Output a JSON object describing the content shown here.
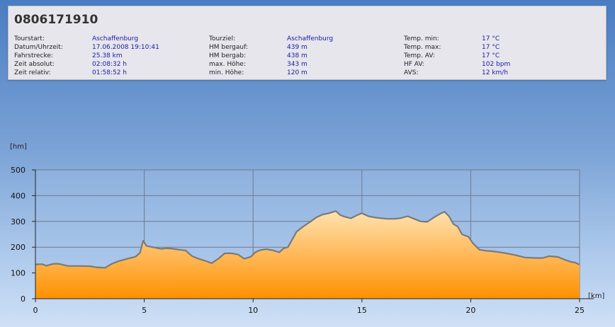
{
  "header": {
    "title": "0806171910"
  },
  "info_columns": [
    [
      {
        "label": "Tourstart:",
        "value": "Aschaffenburg"
      },
      {
        "label": "Datum/Uhrzeit:",
        "value": "17.06.2008 19:10:41"
      },
      {
        "label": "Fahrstrecke:",
        "value": "25.38 km"
      },
      {
        "label": "Zeit absolut:",
        "value": "02:08:32 h"
      },
      {
        "label": "Zeit relativ:",
        "value": "01:58:52 h"
      }
    ],
    [
      {
        "label": "Tourziel:",
        "value": "Aschaffenburg"
      },
      {
        "label": "HM bergauf:",
        "value": "439 m"
      },
      {
        "label": "HM bergab:",
        "value": "438 m"
      },
      {
        "label": "max. Höhe:",
        "value": "343 m"
      },
      {
        "label": "min. Höhe:",
        "value": "120 m"
      }
    ],
    [
      {
        "label": "Temp. min:",
        "value": "17 °C"
      },
      {
        "label": "Temp. max:",
        "value": "17 °C"
      },
      {
        "label": "Temp. AV:",
        "value": "17 °C"
      },
      {
        "label": "HF AV:",
        "value": "102 bpm"
      },
      {
        "label": "AVS:",
        "value": "12 km/h"
      }
    ]
  ],
  "chart_data": {
    "type": "area",
    "ylabel": "[hm]",
    "xlabel": "[km]",
    "xlim": [
      0,
      25
    ],
    "ylim": [
      0,
      500
    ],
    "x_ticks": [
      0,
      5,
      10,
      15,
      20,
      25
    ],
    "y_ticks": [
      0,
      100,
      200,
      300,
      400,
      500
    ],
    "x_tick_labels": [
      "0",
      "5",
      "10",
      "15",
      "20",
      "25"
    ],
    "y_tick_labels": [
      "0",
      "100",
      "200",
      "300",
      "400",
      "500"
    ],
    "grid": true,
    "colors": {
      "fill_top": "#ffe2b0",
      "fill_bottom": "#ff9000",
      "line": "#7a7a7a"
    },
    "x": [
      0,
      0.3,
      0.5,
      0.8,
      1.0,
      1.2,
      1.5,
      2.0,
      2.5,
      2.8,
      3.0,
      3.2,
      3.5,
      3.8,
      4.0,
      4.3,
      4.6,
      4.8,
      4.95,
      5.1,
      5.5,
      5.8,
      6.0,
      6.3,
      6.6,
      6.9,
      7.2,
      7.5,
      7.8,
      8.1,
      8.4,
      8.7,
      9.0,
      9.3,
      9.6,
      9.9,
      10.1,
      10.3,
      10.6,
      10.9,
      11.2,
      11.4,
      11.6,
      11.8,
      12.0,
      12.3,
      12.6,
      12.9,
      13.2,
      13.5,
      13.8,
      14.0,
      14.2,
      14.5,
      14.8,
      15.0,
      15.3,
      15.6,
      15.9,
      16.2,
      16.5,
      16.8,
      17.1,
      17.4,
      17.7,
      18.0,
      18.3,
      18.6,
      18.8,
      19.0,
      19.2,
      19.4,
      19.6,
      19.9,
      20.1,
      20.4,
      20.7,
      21.0,
      21.5,
      22.0,
      22.5,
      23.0,
      23.3,
      23.6,
      24.0,
      24.3,
      24.6,
      24.8,
      25.0
    ],
    "y": [
      133,
      134,
      128,
      135,
      136,
      133,
      127,
      127,
      126,
      122,
      121,
      120,
      135,
      145,
      150,
      157,
      163,
      178,
      225,
      205,
      198,
      193,
      196,
      194,
      190,
      187,
      165,
      155,
      147,
      138,
      155,
      176,
      176,
      172,
      155,
      163,
      180,
      188,
      192,
      188,
      180,
      195,
      200,
      230,
      260,
      280,
      297,
      315,
      327,
      332,
      340,
      325,
      318,
      312,
      325,
      332,
      320,
      315,
      312,
      310,
      310,
      313,
      320,
      310,
      300,
      298,
      315,
      330,
      337,
      320,
      290,
      280,
      250,
      240,
      215,
      190,
      186,
      184,
      178,
      170,
      160,
      158,
      158,
      165,
      162,
      152,
      143,
      140,
      132
    ]
  }
}
